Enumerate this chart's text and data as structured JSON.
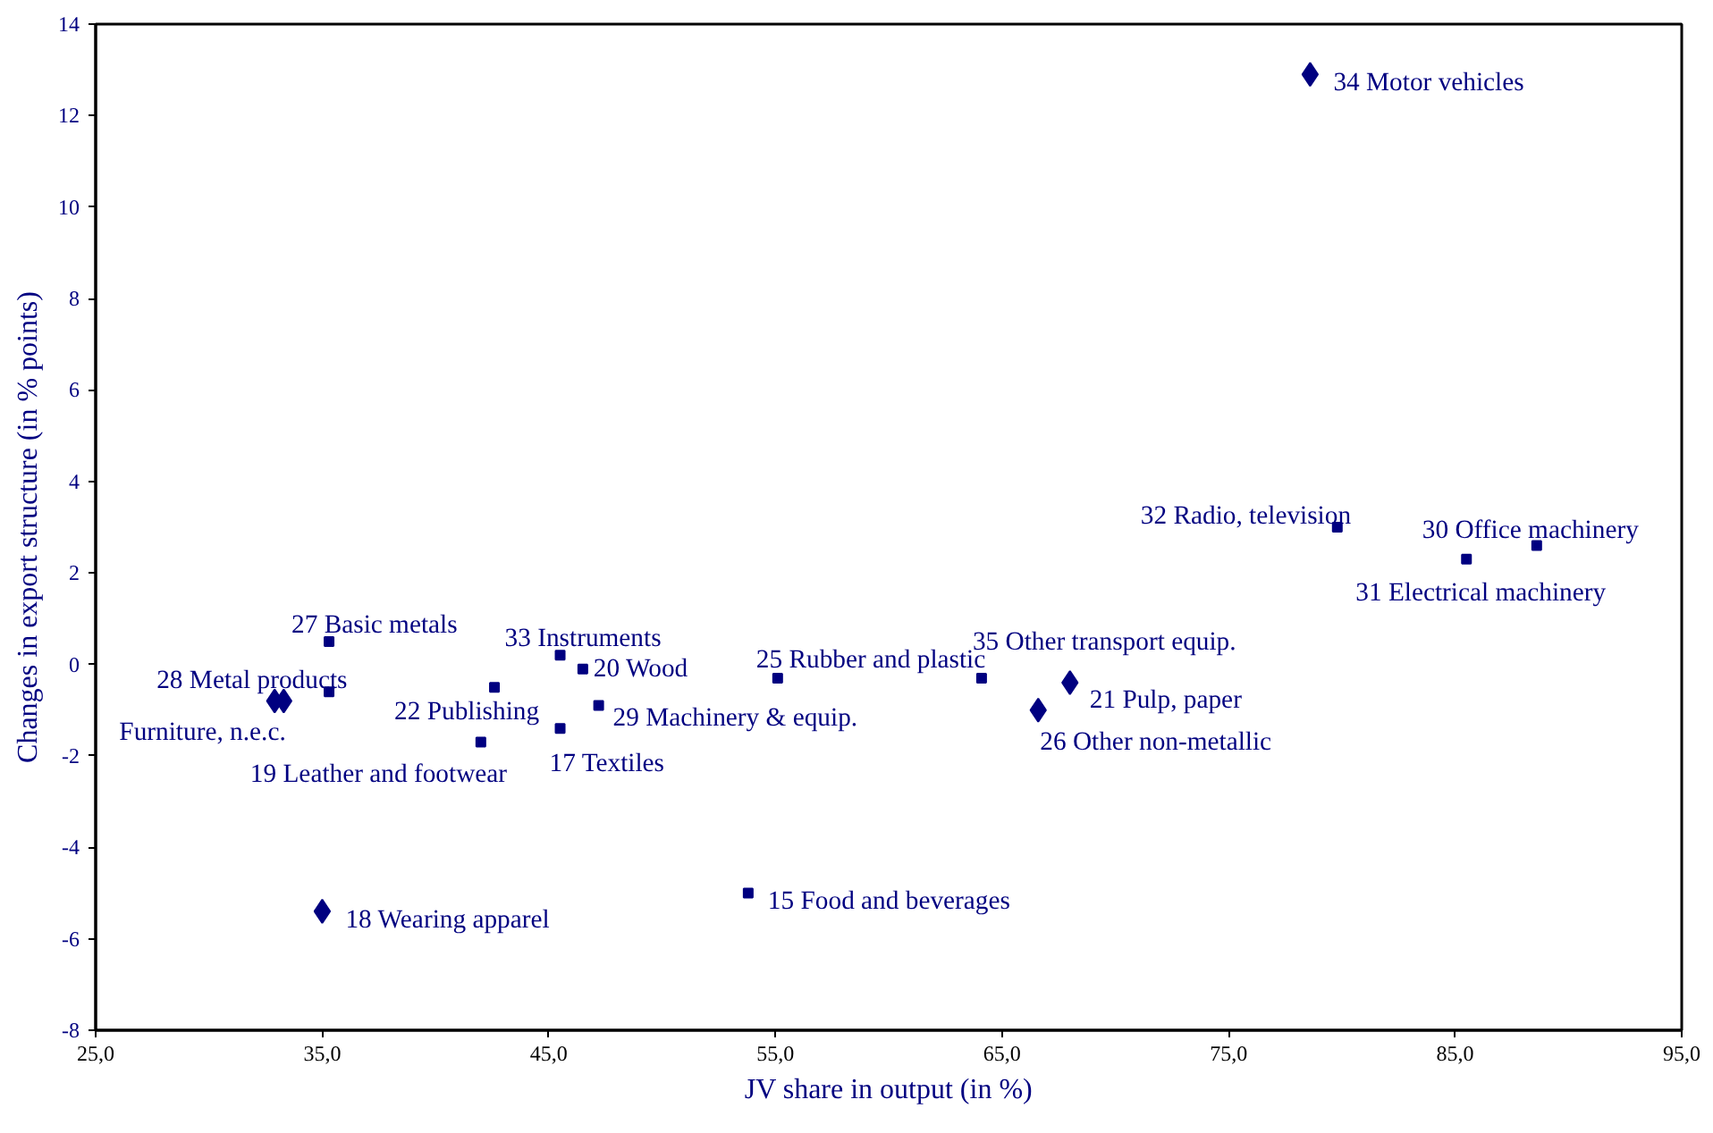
{
  "chart_data": {
    "type": "scatter",
    "xlabel": "JV share in output (in %)",
    "ylabel": "Changes in export structure (in % points)",
    "xlim": [
      25,
      95
    ],
    "ylim": [
      -8,
      14
    ],
    "xticks": [
      {
        "value": 25,
        "label": "25,0"
      },
      {
        "value": 35,
        "label": "35,0"
      },
      {
        "value": 45,
        "label": "45,0"
      },
      {
        "value": 55,
        "label": "55,0"
      },
      {
        "value": 65,
        "label": "65,0"
      },
      {
        "value": 75,
        "label": "75,0"
      },
      {
        "value": 85,
        "label": "85,0"
      },
      {
        "value": 95,
        "label": "95,0"
      }
    ],
    "yticks": [
      -8,
      -6,
      -4,
      -2,
      0,
      2,
      4,
      6,
      8,
      10,
      12,
      14
    ],
    "grid": false,
    "series": [
      {
        "marker": "diamond",
        "color": "#000080",
        "x": [
          32.9,
          33.3,
          35.0,
          78.6,
          68.0,
          66.6
        ],
        "values": [
          -0.8,
          -0.8,
          -5.4,
          12.9,
          -0.4,
          -1.0
        ]
      },
      {
        "marker": "square",
        "color": "#000080",
        "x": [
          35.3,
          35.3,
          42.6,
          42.0,
          45.5,
          45.5,
          46.5,
          47.2,
          55.1,
          53.8,
          64.1,
          79.8,
          85.5,
          88.6
        ],
        "values": [
          0.5,
          -0.6,
          -0.5,
          -1.7,
          0.2,
          -1.4,
          -0.1,
          -0.9,
          -0.3,
          -5.0,
          -0.3,
          3.0,
          2.3,
          2.6
        ]
      }
    ],
    "annotations": [
      {
        "text": "34 Motor vehicles",
        "x": 78.6,
        "y": 12.9
      },
      {
        "text": "32 Radio, television",
        "x": 79.8,
        "y": 3.0
      },
      {
        "text": "30 Office machinery",
        "x": 88.6,
        "y": 2.6
      },
      {
        "text": "31 Electrical machinery",
        "x": 85.5,
        "y": 2.3
      },
      {
        "text": "35 Other transport equip.",
        "x": 64.1,
        "y": -0.3
      },
      {
        "text": "21 Pulp, paper",
        "x": 68.0,
        "y": -0.4
      },
      {
        "text": "26 Other non-metallic",
        "x": 66.6,
        "y": -1.0
      },
      {
        "text": "25 Rubber and plastic",
        "x": 55.1,
        "y": -0.3
      },
      {
        "text": "15 Food and beverages",
        "x": 53.8,
        "y": -5.0
      },
      {
        "text": "33 Instruments",
        "x": 45.5,
        "y": 0.2
      },
      {
        "text": "20 Wood",
        "x": 46.5,
        "y": -0.1
      },
      {
        "text": "29 Machinery & equip.",
        "x": 47.2,
        "y": -0.9
      },
      {
        "text": "17 Textiles",
        "x": 45.5,
        "y": -1.4
      },
      {
        "text": "22 Publishing",
        "x": 42.6,
        "y": -0.5
      },
      {
        "text": "19 Leather and footwear",
        "x": 42.0,
        "y": -1.7
      },
      {
        "text": "27 Basic metals",
        "x": 35.3,
        "y": 0.5
      },
      {
        "text": "28 Metal products",
        "x": 32.9,
        "y": -0.8
      },
      {
        "text": "Furniture, n.e.c.",
        "x": 33.3,
        "y": -0.8
      },
      {
        "text": "18 Wearing apparel",
        "x": 35.0,
        "y": -5.4
      }
    ]
  }
}
